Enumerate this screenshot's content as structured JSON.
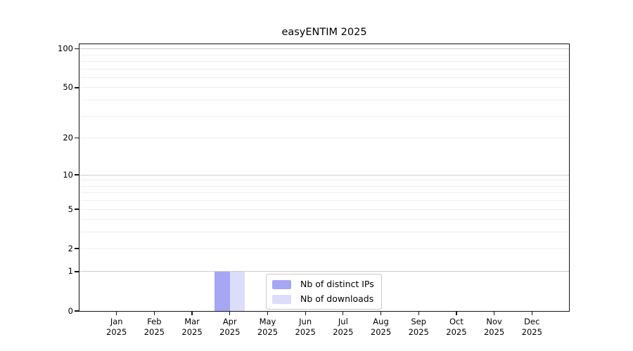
{
  "chart_data": {
    "type": "bar",
    "title": "easyENTIM 2025",
    "categories": [
      "Jan",
      "Feb",
      "Mar",
      "Apr",
      "May",
      "Jun",
      "Jul",
      "Aug",
      "Sep",
      "Oct",
      "Nov",
      "Dec"
    ],
    "year": "2025",
    "series": [
      {
        "name": "Nb of distinct IPs",
        "color": "#a6a6f4",
        "values": [
          0,
          0,
          0,
          1,
          0,
          0,
          0,
          0,
          0,
          0,
          0,
          0
        ]
      },
      {
        "name": "Nb of downloads",
        "color": "#dcdcfb",
        "values": [
          0,
          0,
          0,
          1,
          0,
          0,
          0,
          0,
          0,
          0,
          0,
          0
        ]
      }
    ],
    "xlabel": "",
    "ylabel": "",
    "scale": "log1p",
    "ylim": [
      0,
      110
    ],
    "y_ticks": [
      100,
      50,
      20,
      10,
      5,
      2,
      1,
      0
    ],
    "y_major_gridlines": [
      1,
      10,
      100
    ],
    "y_minor_gridlines": [
      2,
      3,
      4,
      5,
      6,
      7,
      8,
      9,
      20,
      30,
      40,
      50,
      60,
      70,
      80,
      90
    ],
    "grid": "horizontal",
    "legend_position": "lower center",
    "colors": {
      "grid_major": "#cdcdcd",
      "grid_minor": "#eeeeee",
      "spine": "#141414"
    }
  }
}
